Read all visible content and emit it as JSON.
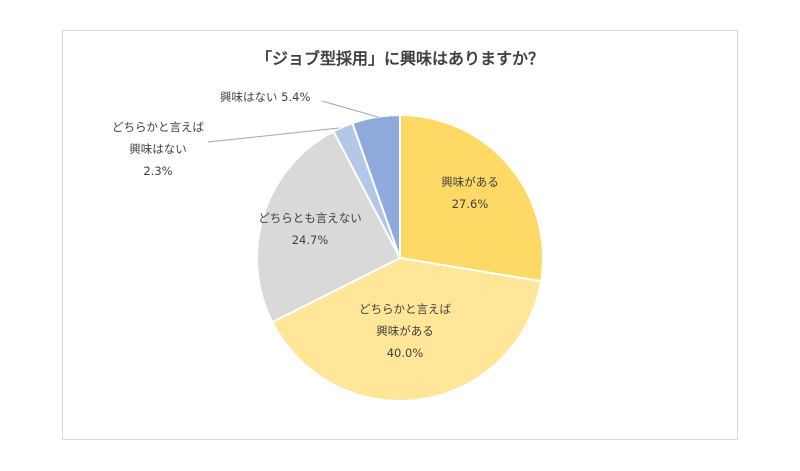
{
  "chart_data": {
    "type": "pie",
    "title": "「ジョブ型採用」に興味はありますか？",
    "slices": [
      {
        "label_lines": [
          "興味がある"
        ],
        "value": 27.6,
        "value_text": "27.6%",
        "color": "#ffd966"
      },
      {
        "label_lines": [
          "どちらかと言えば",
          "興味がある"
        ],
        "value": 40.0,
        "value_text": "40.0%",
        "color": "#ffe699"
      },
      {
        "label_lines": [
          "どちらとも言えない"
        ],
        "value": 24.7,
        "value_text": "24.7%",
        "color": "#d9d9d9"
      },
      {
        "label_lines": [
          "どちらかと言えば",
          "興味はない"
        ],
        "value": 2.3,
        "value_text": "2.3%",
        "color": "#b4c7e7"
      },
      {
        "label_lines": [
          "興味はない"
        ],
        "value": 5.4,
        "value_text": "5.4%",
        "color": "#8faadc"
      }
    ],
    "start_angle": "12 o'clock",
    "direction": "clockwise",
    "legend": "none"
  }
}
